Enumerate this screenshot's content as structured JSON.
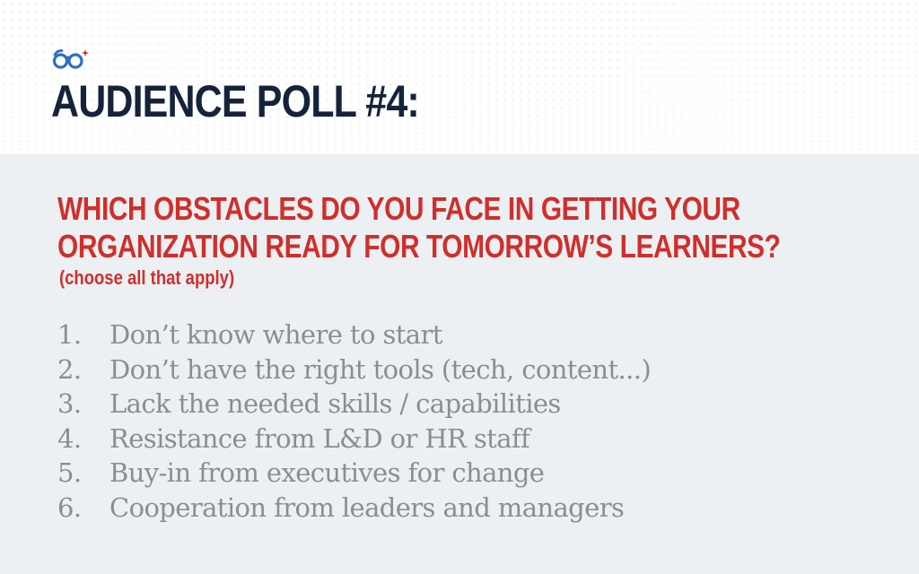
{
  "slide": {
    "logo_icon": "glasses-icon",
    "title": "AUDIENCE POLL #4:",
    "question_line1": "WHICH OBSTACLES DO YOU FACE IN GETTING YOUR",
    "question_line2": "ORGANIZATION READY FOR TOMORROW’S LEARNERS?",
    "hint": "(choose all that apply)",
    "options": [
      {
        "number": "1.",
        "text": "Don’t know where to start"
      },
      {
        "number": "2.",
        "text": "Don’t have the right tools (tech, content...)"
      },
      {
        "number": "3.",
        "text": "Lack the needed skills / capabilities"
      },
      {
        "number": "4.",
        "text": "Resistance from L&D or HR staff"
      },
      {
        "number": "5.",
        "text": "Buy-in from executives for change"
      },
      {
        "number": "6.",
        "text": "Cooperation from leaders and managers"
      }
    ]
  },
  "colors": {
    "title": "#15233a",
    "accent_red": "#cf2f2c",
    "logo_blue": "#2d6fc0",
    "option_gray": "#8a8e93",
    "panel_background": "#edf0f3"
  }
}
